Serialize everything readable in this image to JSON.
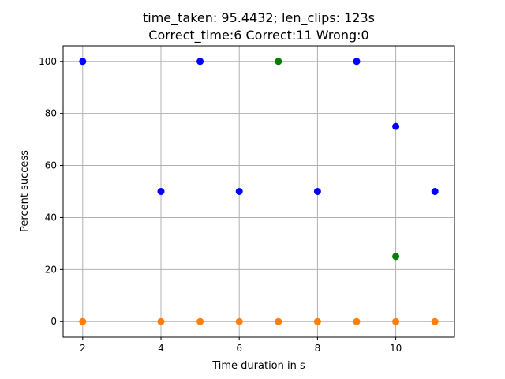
{
  "chart_data": {
    "type": "scatter",
    "title": "time_taken: 95.4432; len_clips: 123s",
    "subtitle": "Correct_time:6 Correct:11 Wrong:0",
    "xlabel": "Time duration in s",
    "ylabel": "Percent success",
    "xlim": [
      1.5,
      11.5
    ],
    "ylim": [
      -6,
      106
    ],
    "xticks": [
      2,
      4,
      6,
      8,
      10
    ],
    "yticks": [
      0,
      20,
      40,
      60,
      80,
      100
    ],
    "grid": true,
    "series": [
      {
        "color": "#0000ff",
        "points": [
          {
            "x": 2,
            "y": 100
          },
          {
            "x": 4,
            "y": 50
          },
          {
            "x": 5,
            "y": 100
          },
          {
            "x": 6,
            "y": 50
          },
          {
            "x": 8,
            "y": 50
          },
          {
            "x": 9,
            "y": 100
          },
          {
            "x": 10,
            "y": 75
          },
          {
            "x": 11,
            "y": 50
          }
        ]
      },
      {
        "color": "#008000",
        "points": [
          {
            "x": 7,
            "y": 100
          },
          {
            "x": 10,
            "y": 25
          }
        ]
      },
      {
        "color": "#ff7f0e",
        "points": [
          {
            "x": 2,
            "y": 0
          },
          {
            "x": 4,
            "y": 0
          },
          {
            "x": 5,
            "y": 0
          },
          {
            "x": 6,
            "y": 0
          },
          {
            "x": 7,
            "y": 0
          },
          {
            "x": 8,
            "y": 0
          },
          {
            "x": 9,
            "y": 0
          },
          {
            "x": 10,
            "y": 0
          },
          {
            "x": 11,
            "y": 0
          }
        ]
      }
    ]
  }
}
